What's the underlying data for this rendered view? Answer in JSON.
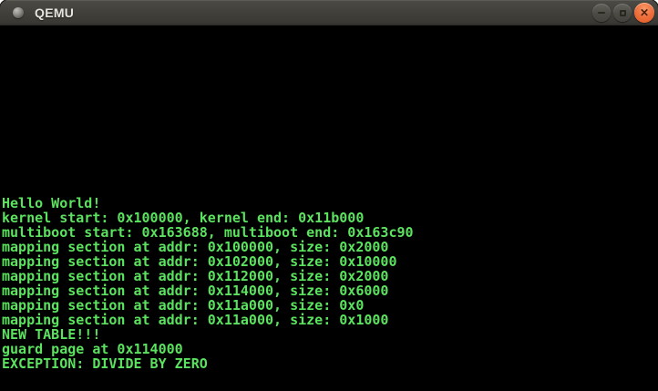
{
  "window": {
    "title": "QEMU",
    "controls": {
      "minimize_label": "minimize",
      "maximize_label": "maximize",
      "close_label": "close",
      "close_glyph": "✕"
    }
  },
  "terminal": {
    "lines": [
      "Hello World!",
      "kernel start: 0x100000, kernel end: 0x11b000",
      "multiboot start: 0x163688, multiboot end: 0x163c90",
      "mapping section at addr: 0x100000, size: 0x2000",
      "mapping section at addr: 0x102000, size: 0x10000",
      "mapping section at addr: 0x112000, size: 0x2000",
      "mapping section at addr: 0x114000, size: 0x6000",
      "mapping section at addr: 0x11a000, size: 0x0",
      "mapping section at addr: 0x11a000, size: 0x1000",
      "NEW TABLE!!!",
      "guard page at 0x114000",
      "EXCEPTION: DIVIDE BY ZERO"
    ]
  },
  "colors": {
    "terminal_foreground": "#5be25f",
    "terminal_background": "#000000",
    "titlebar_background": "#403f3a",
    "titlebar_text": "#e6e3dc",
    "close_button": "#ef7140"
  }
}
